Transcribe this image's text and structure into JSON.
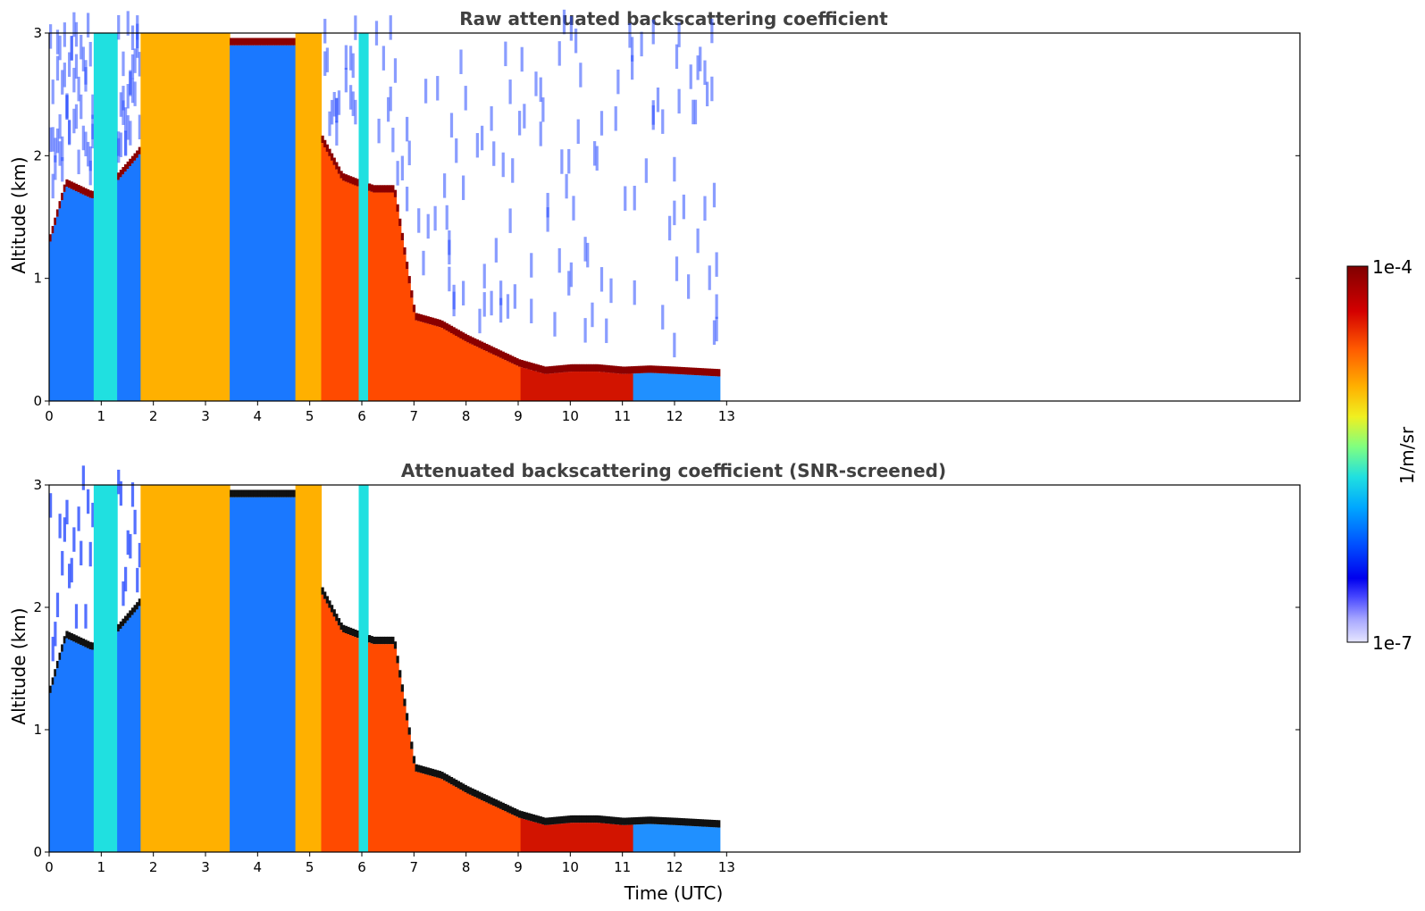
{
  "chart_data": [
    {
      "type": "heatmap",
      "title": "Raw attenuated backscattering coefficient",
      "xlabel": "",
      "ylabel": "Altitude (km)",
      "xlim": [
        0,
        24
      ],
      "ylim": [
        0,
        3
      ],
      "x_ticks": [
        "0",
        "1",
        "2",
        "3",
        "4",
        "5",
        "6",
        "7",
        "8",
        "9",
        "10",
        "11",
        "12",
        "13"
      ],
      "y_ticks": [
        "0",
        "1",
        "2",
        "3"
      ],
      "data_end_time": 12.85,
      "screened": false,
      "cloud_base_km": [
        [
          0.0,
          1.3
        ],
        [
          0.3,
          1.75
        ],
        [
          0.8,
          1.65
        ],
        [
          1.3,
          1.8
        ],
        [
          1.7,
          2.0
        ],
        [
          2.2,
          2.55
        ],
        [
          2.8,
          2.9
        ],
        [
          3.2,
          2.9
        ],
        [
          4.7,
          2.9
        ],
        [
          5.1,
          2.2
        ],
        [
          5.6,
          1.8
        ],
        [
          6.2,
          1.7
        ],
        [
          6.6,
          1.7
        ],
        [
          7.0,
          0.66
        ],
        [
          7.5,
          0.6
        ],
        [
          8.0,
          0.48
        ],
        [
          8.5,
          0.38
        ],
        [
          9.0,
          0.28
        ],
        [
          9.5,
          0.22
        ],
        [
          10.0,
          0.24
        ],
        [
          10.5,
          0.24
        ],
        [
          11.0,
          0.22
        ],
        [
          11.5,
          0.23
        ],
        [
          12.0,
          0.22
        ],
        [
          12.85,
          0.2
        ]
      ],
      "colorscale": {
        "label": "1/m/sr",
        "min": "1e-7",
        "max": "1e-4",
        "scale": "log"
      }
    },
    {
      "type": "heatmap",
      "title": "Attenuated backscattering coefficient (SNR-screened)",
      "xlabel": "Time (UTC)",
      "ylabel": "Altitude (km)",
      "xlim": [
        0,
        24
      ],
      "ylim": [
        0,
        3
      ],
      "x_ticks": [
        "0",
        "1",
        "2",
        "3",
        "4",
        "5",
        "6",
        "7",
        "8",
        "9",
        "10",
        "11",
        "12",
        "13"
      ],
      "y_ticks": [
        "0",
        "1",
        "2",
        "3"
      ],
      "data_end_time": 12.85,
      "screened": true,
      "cloud_base_km": [
        [
          0.0,
          1.3
        ],
        [
          0.3,
          1.75
        ],
        [
          0.8,
          1.65
        ],
        [
          1.3,
          1.8
        ],
        [
          1.7,
          2.0
        ],
        [
          2.2,
          2.55
        ],
        [
          2.8,
          2.9
        ],
        [
          3.2,
          2.9
        ],
        [
          4.7,
          2.9
        ],
        [
          5.1,
          2.2
        ],
        [
          5.6,
          1.8
        ],
        [
          6.2,
          1.7
        ],
        [
          6.6,
          1.7
        ],
        [
          7.0,
          0.66
        ],
        [
          7.5,
          0.6
        ],
        [
          8.0,
          0.48
        ],
        [
          8.5,
          0.38
        ],
        [
          9.0,
          0.28
        ],
        [
          9.5,
          0.22
        ],
        [
          10.0,
          0.24
        ],
        [
          10.5,
          0.24
        ],
        [
          11.0,
          0.22
        ],
        [
          11.5,
          0.23
        ],
        [
          12.0,
          0.22
        ],
        [
          12.85,
          0.2
        ]
      ],
      "colorscale": {
        "label": "1/m/sr",
        "min": "1e-7",
        "max": "1e-4",
        "scale": "log"
      }
    }
  ],
  "colorbar": {
    "label": "1/m/sr",
    "max_label": "1e-4",
    "min_label": "1e-7",
    "colors": [
      "#800000",
      "#d40000",
      "#ff5a00",
      "#ffb000",
      "#f0f020",
      "#80ff80",
      "#20e0e0",
      "#00a8ff",
      "#0050ff",
      "#0000e0",
      "#6a6aff",
      "#b0b0ff",
      "#e4e4ff"
    ]
  }
}
